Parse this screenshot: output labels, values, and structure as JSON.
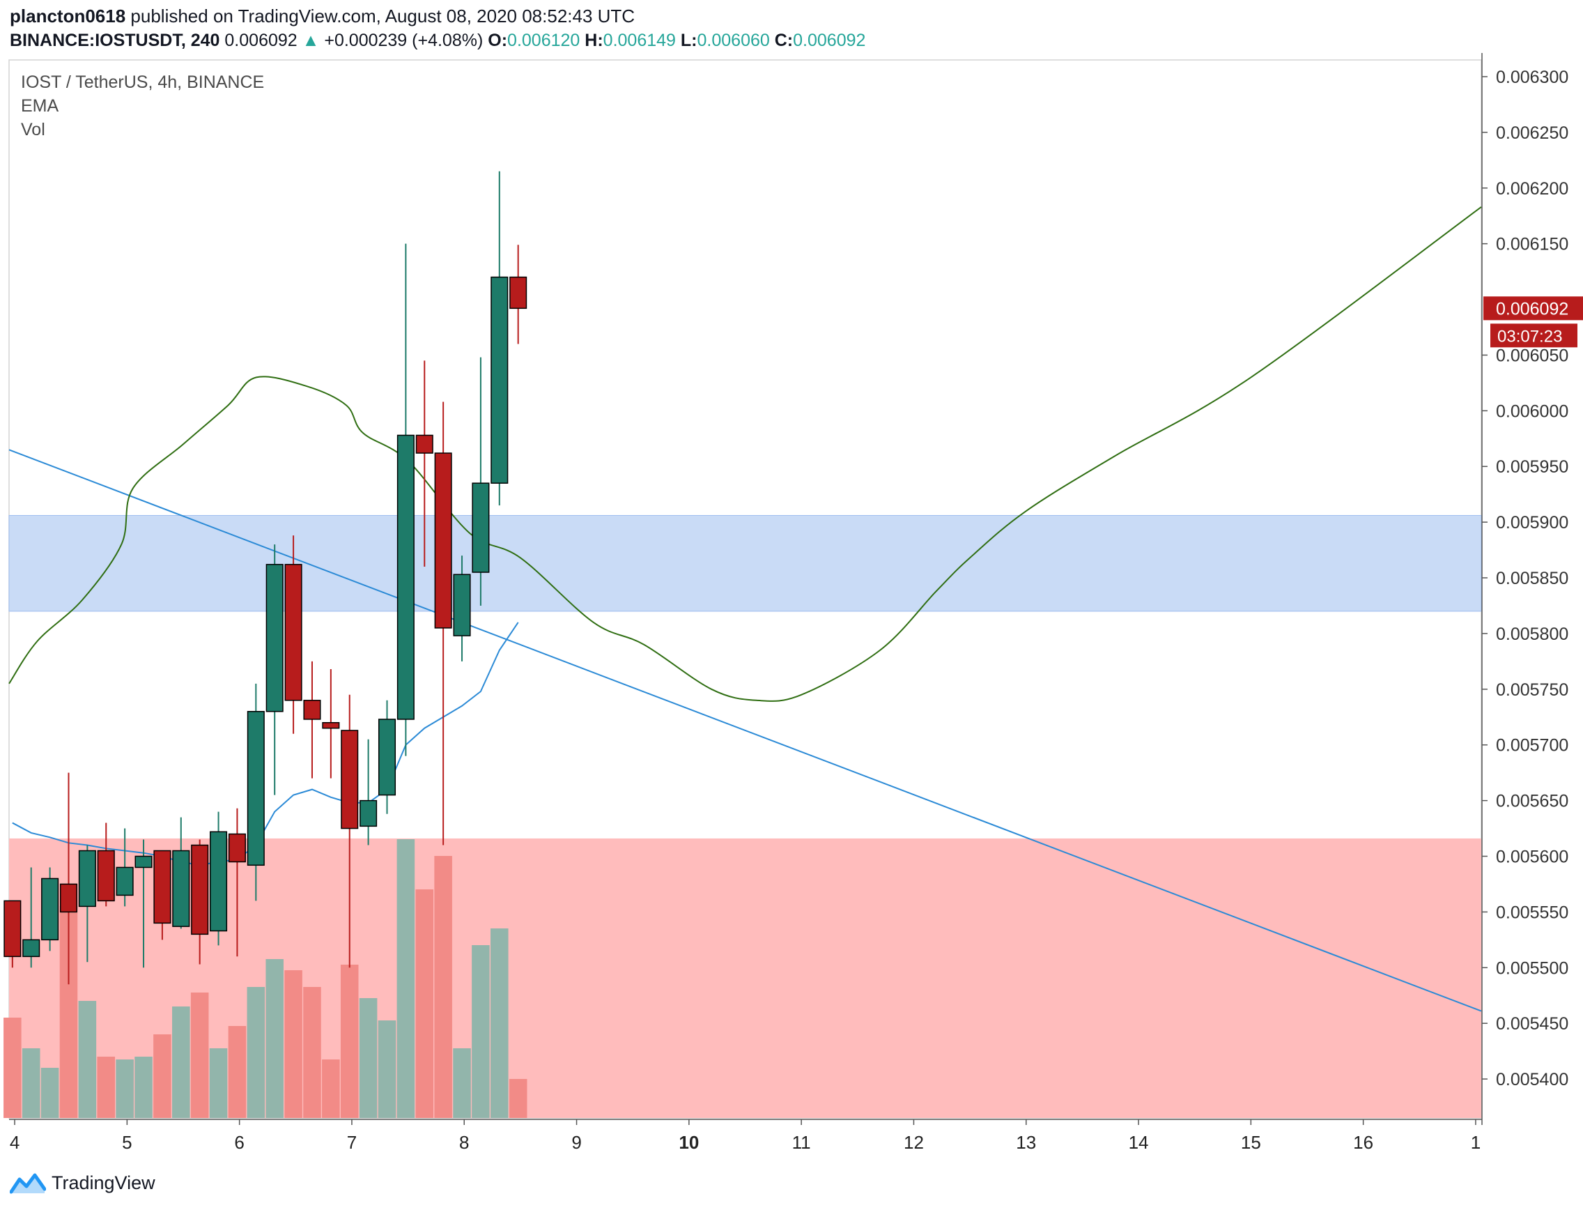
{
  "header": {
    "publisher": "plancton0618",
    "published_text": "published on TradingView.com, August 08, 2020 08:52:43 UTC",
    "symbol": "BINANCE:IOSTUSDT, 240",
    "last": "0.006092",
    "change_arrow": "▲",
    "change": "+0.000239 (+4.08%)",
    "o_label": "O:",
    "o_value": "0.006120",
    "h_label": "H:",
    "h_value": "0.006149",
    "l_label": "L:",
    "l_value": "0.006060",
    "c_label": "C:",
    "c_value": "0.006092"
  },
  "legend": {
    "title": "IOST / TetherUS, 4h, BINANCE",
    "ema": "EMA",
    "vol": "Vol"
  },
  "footer": {
    "brand": "TradingView",
    "logo_icon": "tradingview-logo-icon"
  },
  "colors": {
    "up": "#1e7b69",
    "down": "#b71c1c",
    "vol_up": "#92b5ab",
    "vol_down": "#f28b87",
    "support_zone": "#c9dbf6",
    "demand_zone": "#ffbcbc",
    "ema": "#2b8ad6",
    "trendline": "#2b8ad6",
    "projection": "#2f6e12",
    "price_tag": "#b71c1c"
  },
  "chart_data": {
    "type": "candlestick",
    "title": "IOST / TetherUS, 4h, BINANCE",
    "interval": "4h",
    "x_ticks": [
      "4",
      "5",
      "6",
      "7",
      "8",
      "9",
      "10",
      "11",
      "12",
      "13",
      "14",
      "15",
      "16",
      "1"
    ],
    "x_range_days": [
      3.95,
      17.05
    ],
    "y_ticks": [
      "0.006300",
      "0.006250",
      "0.006200",
      "0.006150",
      "0.006050",
      "0.006000",
      "0.005950",
      "0.005900",
      "0.005850",
      "0.005800",
      "0.005750",
      "0.005700",
      "0.005650",
      "0.005600",
      "0.005550",
      "0.005500",
      "0.005450",
      "0.005400"
    ],
    "y_range": [
      0.005365,
      0.006315
    ],
    "current_price": "0.006092",
    "countdown": "03:07:23",
    "candles": [
      {
        "o": 0.00556,
        "h": 0.00556,
        "l": 0.0055,
        "c": 0.00551
      },
      {
        "o": 0.00551,
        "h": 0.00559,
        "l": 0.0055,
        "c": 0.005525
      },
      {
        "o": 0.005525,
        "h": 0.00559,
        "l": 0.005515,
        "c": 0.00558
      },
      {
        "o": 0.005575,
        "h": 0.005675,
        "l": 0.005485,
        "c": 0.00555
      },
      {
        "o": 0.005555,
        "h": 0.00561,
        "l": 0.005505,
        "c": 0.005605
      },
      {
        "o": 0.005605,
        "h": 0.00563,
        "l": 0.005555,
        "c": 0.00556
      },
      {
        "o": 0.005565,
        "h": 0.005625,
        "l": 0.005555,
        "c": 0.00559
      },
      {
        "o": 0.00559,
        "h": 0.005615,
        "l": 0.0055,
        "c": 0.0056
      },
      {
        "o": 0.005605,
        "h": 0.005605,
        "l": 0.005525,
        "c": 0.00554
      },
      {
        "o": 0.005537,
        "h": 0.005635,
        "l": 0.005535,
        "c": 0.005605
      },
      {
        "o": 0.00561,
        "h": 0.005615,
        "l": 0.005503,
        "c": 0.00553
      },
      {
        "o": 0.005533,
        "h": 0.00564,
        "l": 0.00552,
        "c": 0.005622
      },
      {
        "o": 0.00562,
        "h": 0.005643,
        "l": 0.00551,
        "c": 0.005595
      },
      {
        "o": 0.005592,
        "h": 0.005755,
        "l": 0.00556,
        "c": 0.00573
      },
      {
        "o": 0.00573,
        "h": 0.00588,
        "l": 0.005655,
        "c": 0.005862
      },
      {
        "o": 0.005862,
        "h": 0.005888,
        "l": 0.00571,
        "c": 0.00574
      },
      {
        "o": 0.00574,
        "h": 0.005775,
        "l": 0.00567,
        "c": 0.005723
      },
      {
        "o": 0.00572,
        "h": 0.005768,
        "l": 0.00567,
        "c": 0.005715
      },
      {
        "o": 0.005713,
        "h": 0.005745,
        "l": 0.0055,
        "c": 0.005625
      },
      {
        "o": 0.005627,
        "h": 0.005705,
        "l": 0.00561,
        "c": 0.00565
      },
      {
        "o": 0.005655,
        "h": 0.00574,
        "l": 0.005638,
        "c": 0.005723
      },
      {
        "o": 0.005723,
        "h": 0.00615,
        "l": 0.00569,
        "c": 0.005978
      },
      {
        "o": 0.005978,
        "h": 0.006045,
        "l": 0.00586,
        "c": 0.005962
      },
      {
        "o": 0.005962,
        "h": 0.006008,
        "l": 0.00561,
        "c": 0.005805
      },
      {
        "o": 0.005798,
        "h": 0.00587,
        "l": 0.005775,
        "c": 0.005853
      },
      {
        "o": 0.005855,
        "h": 0.006048,
        "l": 0.005825,
        "c": 0.005935
      },
      {
        "o": 0.005935,
        "h": 0.006215,
        "l": 0.005915,
        "c": 0.00612
      },
      {
        "o": 0.00612,
        "h": 0.006149,
        "l": 0.00606,
        "c": 0.006092
      }
    ],
    "volume": [
      0.36,
      0.25,
      0.18,
      0.76,
      0.42,
      0.22,
      0.21,
      0.22,
      0.3,
      0.4,
      0.45,
      0.25,
      0.33,
      0.47,
      0.57,
      0.53,
      0.47,
      0.21,
      0.55,
      0.43,
      0.35,
      1.0,
      0.82,
      0.94,
      0.25,
      0.62,
      0.68,
      0.14
    ],
    "ema": [
      0.00563,
      0.005621,
      0.005617,
      0.005612,
      0.00561,
      0.005607,
      0.005605,
      0.005603,
      0.0056,
      0.005595,
      0.005592,
      0.005595,
      0.005597,
      0.00561,
      0.00564,
      0.005655,
      0.00566,
      0.005653,
      0.005648,
      0.005648,
      0.00566,
      0.0057,
      0.005715,
      0.005725,
      0.005735,
      0.005748,
      0.005785,
      0.00581
    ],
    "zones": [
      {
        "name": "support",
        "from": 0.00582,
        "to": 0.005906
      },
      {
        "name": "demand",
        "from": 0.005365,
        "to": 0.005616
      }
    ],
    "trendline": [
      {
        "day": 3.95,
        "price": 0.005965
      },
      {
        "day": 17.05,
        "price": 0.005461
      }
    ],
    "projection_path": [
      {
        "day": 3.95,
        "price": 0.005755
      },
      {
        "day": 4.2,
        "price": 0.005793
      },
      {
        "day": 4.6,
        "price": 0.00583
      },
      {
        "day": 4.95,
        "price": 0.00588
      },
      {
        "day": 5.05,
        "price": 0.00593
      },
      {
        "day": 5.5,
        "price": 0.00597
      },
      {
        "day": 5.9,
        "price": 0.006005
      },
      {
        "day": 6.15,
        "price": 0.00603
      },
      {
        "day": 6.6,
        "price": 0.006022
      },
      {
        "day": 6.95,
        "price": 0.006005
      },
      {
        "day": 7.1,
        "price": 0.00598
      },
      {
        "day": 7.5,
        "price": 0.005955
      },
      {
        "day": 8.05,
        "price": 0.00589
      },
      {
        "day": 8.5,
        "price": 0.005868
      },
      {
        "day": 9.15,
        "price": 0.00581
      },
      {
        "day": 9.6,
        "price": 0.00579
      },
      {
        "day": 10.2,
        "price": 0.00575
      },
      {
        "day": 10.6,
        "price": 0.00574
      },
      {
        "day": 11.0,
        "price": 0.005745
      },
      {
        "day": 11.7,
        "price": 0.005785
      },
      {
        "day": 12.2,
        "price": 0.005838
      },
      {
        "day": 12.5,
        "price": 0.005868
      },
      {
        "day": 13.0,
        "price": 0.00591
      },
      {
        "day": 13.8,
        "price": 0.00596
      },
      {
        "day": 15.0,
        "price": 0.00603
      },
      {
        "day": 17.05,
        "price": 0.006183
      }
    ]
  }
}
